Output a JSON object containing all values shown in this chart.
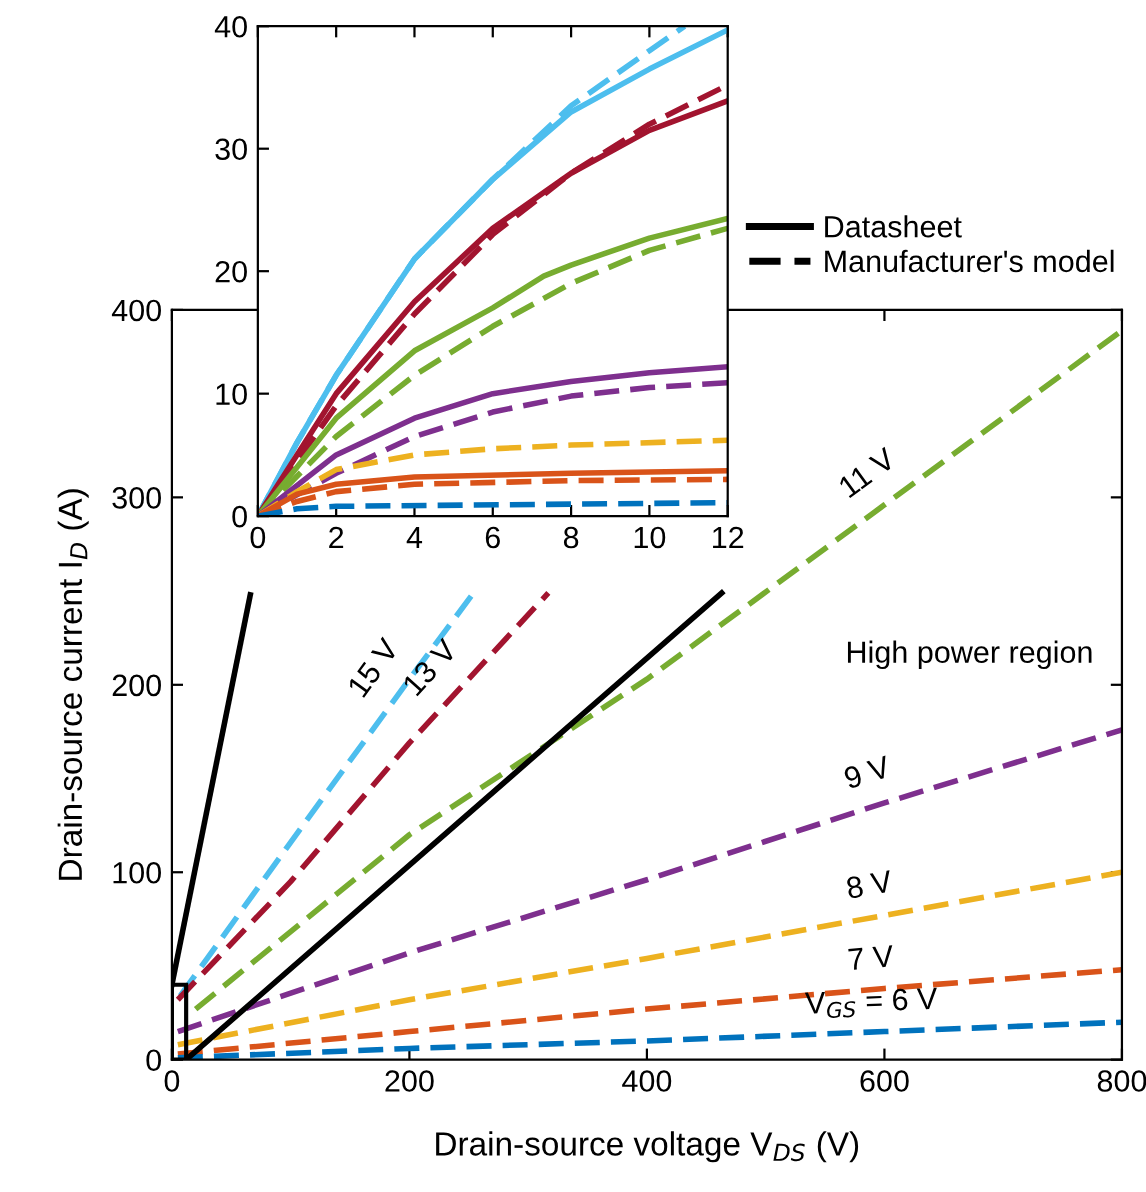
{
  "chart_data": [
    {
      "type": "line",
      "xlabel": "Drain-source voltage V$_{DS}$ (V)",
      "ylabel": "Drain-source current I$_{D}$ (A)",
      "xlim": [
        0,
        800
      ],
      "ylim": [
        0,
        400
      ],
      "xticks": [
        0,
        200,
        400,
        600,
        800
      ],
      "yticks": [
        0,
        100,
        200,
        300,
        400
      ],
      "grid": false,
      "legend": false,
      "line_style": "dashed",
      "marker": "none",
      "annotations": [
        "High power region"
      ],
      "series": [
        {
          "name": "15 V",
          "color": "#4dbeee",
          "x": [
            7,
            100,
            200,
            254
          ],
          "values": [
            34,
            116,
            203,
            249
          ]
        },
        {
          "name": "13 V",
          "color": "#a2142f",
          "x": [
            5,
            100,
            200,
            317
          ],
          "values": [
            32,
            95,
            169,
            249
          ]
        },
        {
          "name": "11 V",
          "color": "#77ac30",
          "x": [
            20,
            200,
            400,
            600,
            800
          ],
          "values": [
            27,
            120,
            203,
            296,
            389
          ]
        },
        {
          "name": "9 V",
          "color": "#7e2f8e",
          "x": [
            5,
            200,
            400,
            600,
            800
          ],
          "values": [
            15,
            57,
            96,
            137,
            176
          ]
        },
        {
          "name": "8 V",
          "color": "#edb120",
          "x": [
            5,
            200,
            400,
            600,
            800
          ],
          "values": [
            8,
            32,
            54,
            77,
            100
          ]
        },
        {
          "name": "7 V",
          "color": "#d95319",
          "x": [
            5,
            200,
            400,
            600,
            800
          ],
          "values": [
            3,
            15,
            27,
            38,
            48
          ]
        },
        {
          "name": "V$_{GS}$ = 6 V",
          "color": "#0072bd",
          "x": [
            5,
            200,
            400,
            600,
            800
          ],
          "values": [
            1,
            6,
            10,
            15,
            20
          ]
        },
        {
          "color": "#000000",
          "line_style": "solid",
          "x": [
            0,
            66
          ],
          "values": [
            40,
            248
          ]
        },
        {
          "color": "#000000",
          "line_style": "solid",
          "x": [
            12,
            463
          ],
          "values": [
            0,
            249
          ]
        }
      ]
    },
    {
      "type": "line",
      "xlim": [
        0,
        12
      ],
      "ylim": [
        0,
        40
      ],
      "xticks": [
        0,
        2,
        4,
        6,
        8,
        10,
        12
      ],
      "yticks": [
        0,
        10,
        20,
        30,
        40
      ],
      "grid": false,
      "legend": "right",
      "marker": "none",
      "series": [
        {
          "color": "#4dbeee",
          "line_style": "solid",
          "x": [
            0,
            1,
            2,
            4,
            6,
            8,
            10,
            12
          ],
          "values": [
            0,
            6,
            11.5,
            21,
            27.5,
            33,
            36.5,
            39.7
          ]
        },
        {
          "color": "#4dbeee",
          "line_style": "dashed",
          "x": [
            0,
            1,
            2,
            4,
            6,
            8,
            10,
            10.9
          ],
          "values": [
            0,
            6,
            11.5,
            21,
            27.5,
            33.5,
            38,
            40
          ]
        },
        {
          "color": "#a2142f",
          "line_style": "solid",
          "x": [
            0,
            2,
            4,
            6,
            8,
            10,
            12
          ],
          "values": [
            0,
            10,
            17.5,
            23.5,
            28,
            31.5,
            33.9
          ]
        },
        {
          "color": "#a2142f",
          "line_style": "dashed",
          "x": [
            0,
            2,
            4,
            6,
            8,
            10,
            12
          ],
          "values": [
            0,
            9,
            16.5,
            23,
            28,
            32,
            35.2
          ]
        },
        {
          "color": "#77ac30",
          "line_style": "solid",
          "x": [
            0,
            2,
            4,
            6,
            7.3,
            8,
            10,
            12
          ],
          "values": [
            0,
            8,
            13.5,
            17,
            19.6,
            20.5,
            22.7,
            24.3
          ]
        },
        {
          "color": "#77ac30",
          "line_style": "dashed",
          "x": [
            0,
            2,
            4,
            6,
            8,
            10,
            12
          ],
          "values": [
            0,
            6.5,
            11.5,
            15.5,
            19,
            21.7,
            23.5
          ]
        },
        {
          "color": "#7e2f8e",
          "line_style": "solid",
          "x": [
            0,
            2,
            4,
            6,
            8,
            10,
            12
          ],
          "values": [
            0,
            5,
            8,
            10,
            11,
            11.7,
            12.2
          ]
        },
        {
          "color": "#7e2f8e",
          "line_style": "dashed",
          "x": [
            0,
            2,
            4,
            6,
            8,
            10,
            12
          ],
          "values": [
            0,
            3.5,
            6.5,
            8.5,
            9.8,
            10.5,
            10.9
          ]
        },
        {
          "color": "#edb120",
          "line_style": "dashed",
          "x": [
            0,
            1,
            2,
            4,
            6,
            8,
            12
          ],
          "values": [
            0,
            2,
            3.8,
            5,
            5.5,
            5.8,
            6.2
          ]
        },
        {
          "color": "#d95319",
          "line_style": "solid",
          "x": [
            0,
            1,
            2,
            4,
            8,
            12
          ],
          "values": [
            0,
            1.8,
            2.6,
            3.2,
            3.5,
            3.7
          ]
        },
        {
          "color": "#d95319",
          "line_style": "dashed",
          "x": [
            0,
            1,
            2,
            4,
            8,
            12
          ],
          "values": [
            0,
            1.2,
            2.0,
            2.6,
            2.9,
            3.0
          ]
        },
        {
          "color": "#0072bd",
          "line_style": "dashed",
          "x": [
            0,
            0.5,
            1,
            2,
            12
          ],
          "values": [
            0,
            0.3,
            0.6,
            0.8,
            1.1
          ]
        },
        {
          "name": "Datasheet",
          "color": "#000000",
          "line_style": "solid"
        },
        {
          "name": "Manufacturer's model",
          "color": "#000000",
          "line_style": "dashed"
        }
      ]
    }
  ]
}
